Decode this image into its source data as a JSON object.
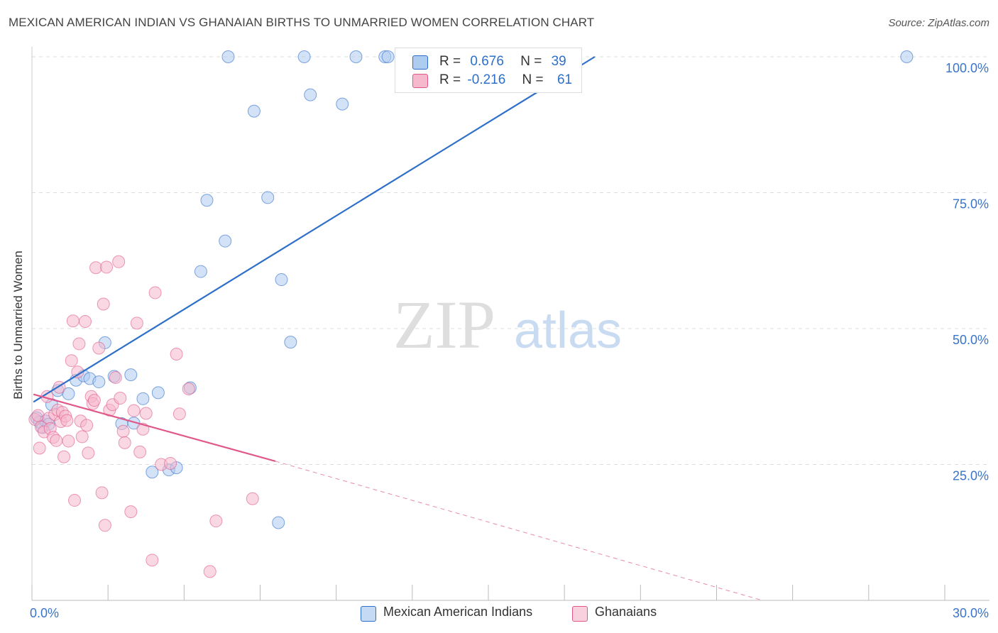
{
  "header": {
    "title": "MEXICAN AMERICAN INDIAN VS GHANAIAN BIRTHS TO UNMARRIED WOMEN CORRELATION CHART",
    "source": "Source: ZipAtlas.com"
  },
  "watermark": {
    "zip": "ZIP",
    "atlas": "atlas"
  },
  "colors": {
    "blue": "#2e6fc9",
    "blue_fill": "#aecbf0",
    "pink": "#e0588a",
    "pink_fill": "#f6b8cc",
    "grid": "#dddddd",
    "tick_label": "#3a74c8"
  },
  "legend_top": {
    "rows": [
      {
        "r_label": "R =",
        "r_value": "0.676",
        "n_label": "N =",
        "n_value": "39"
      },
      {
        "r_label": "R =",
        "r_value": "-0.216",
        "n_label": "N =",
        "n_value": "61"
      }
    ]
  },
  "legend_bottom": {
    "items": [
      {
        "label": "Mexican American Indians"
      },
      {
        "label": "Ghanaians"
      }
    ]
  },
  "chart_data": {
    "type": "scatter",
    "title": "MEXICAN AMERICAN INDIAN VS GHANAIAN BIRTHS TO UNMARRIED WOMEN CORRELATION CHART",
    "xlabel": "",
    "ylabel": "Births to Unmarried Women",
    "xlim": [
      0,
      30
    ],
    "ylim": [
      0,
      100
    ],
    "x_tick_labels": [
      "0.0%",
      "30.0%"
    ],
    "y_ticks": [
      25,
      50,
      75,
      100
    ],
    "y_tick_labels": [
      "25.0%",
      "50.0%",
      "75.0%",
      "100.0%"
    ],
    "grid": true,
    "legend_position": "top-center",
    "series": [
      {
        "name": "Mexican American Indians",
        "R": 0.676,
        "N": 39,
        "trend": {
          "x": [
            0.05,
            18.5
          ],
          "y": [
            36.5,
            100
          ]
        },
        "points": [
          [
            0.15,
            33.6
          ],
          [
            0.25,
            32.8
          ],
          [
            0.35,
            31.8
          ],
          [
            0.45,
            33.0
          ],
          [
            0.55,
            32.4
          ],
          [
            0.65,
            36.0
          ],
          [
            0.85,
            38.6
          ],
          [
            1.2,
            38.0
          ],
          [
            1.45,
            40.5
          ],
          [
            1.7,
            41.3
          ],
          [
            1.9,
            40.8
          ],
          [
            2.2,
            40.2
          ],
          [
            2.4,
            47.4
          ],
          [
            2.7,
            41.2
          ],
          [
            2.95,
            32.5
          ],
          [
            3.25,
            41.5
          ],
          [
            3.35,
            32.6
          ],
          [
            3.65,
            37.1
          ],
          [
            3.95,
            23.6
          ],
          [
            4.15,
            38.2
          ],
          [
            4.5,
            24.0
          ],
          [
            4.75,
            24.4
          ],
          [
            5.2,
            39.1
          ],
          [
            5.55,
            60.5
          ],
          [
            5.75,
            73.6
          ],
          [
            6.35,
            66.1
          ],
          [
            7.3,
            90.0
          ],
          [
            7.75,
            74.1
          ],
          [
            8.1,
            14.3
          ],
          [
            8.2,
            59.0
          ],
          [
            8.5,
            47.5
          ],
          [
            8.95,
            100
          ],
          [
            9.15,
            93.0
          ],
          [
            6.45,
            100
          ],
          [
            10.2,
            91.3
          ],
          [
            10.65,
            100
          ],
          [
            11.6,
            100
          ],
          [
            11.7,
            100
          ],
          [
            28.75,
            100
          ]
        ]
      },
      {
        "name": "Ghanaians",
        "R": -0.216,
        "N": 61,
        "trend": {
          "x": [
            0.05,
            8.0
          ],
          "y": [
            37.9,
            25.6
          ]
        },
        "trend_dashed": {
          "x": [
            8.0,
            24.0
          ],
          "y": [
            25.6,
            0.0
          ]
        },
        "points": [
          [
            0.1,
            33.3
          ],
          [
            0.2,
            34.0
          ],
          [
            0.25,
            28.0
          ],
          [
            0.3,
            31.9
          ],
          [
            0.4,
            31.0
          ],
          [
            0.5,
            37.5
          ],
          [
            0.55,
            33.5
          ],
          [
            0.6,
            31.6
          ],
          [
            0.7,
            30.0
          ],
          [
            0.75,
            34.2
          ],
          [
            0.8,
            29.4
          ],
          [
            0.85,
            35.0
          ],
          [
            0.9,
            39.2
          ],
          [
            0.95,
            32.9
          ],
          [
            1.0,
            34.6
          ],
          [
            1.05,
            26.4
          ],
          [
            1.1,
            33.9
          ],
          [
            1.15,
            33.1
          ],
          [
            1.2,
            29.3
          ],
          [
            1.3,
            44.1
          ],
          [
            1.35,
            51.4
          ],
          [
            1.4,
            18.4
          ],
          [
            1.5,
            42.0
          ],
          [
            1.55,
            47.2
          ],
          [
            1.6,
            33.0
          ],
          [
            1.65,
            30.1
          ],
          [
            1.75,
            51.3
          ],
          [
            1.8,
            32.2
          ],
          [
            1.85,
            27.1
          ],
          [
            1.95,
            37.5
          ],
          [
            2.0,
            36.2
          ],
          [
            2.05,
            36.8
          ],
          [
            2.1,
            61.2
          ],
          [
            2.2,
            46.4
          ],
          [
            2.3,
            19.8
          ],
          [
            2.35,
            54.5
          ],
          [
            2.4,
            13.8
          ],
          [
            2.45,
            61.3
          ],
          [
            2.55,
            35.0
          ],
          [
            2.65,
            36.0
          ],
          [
            2.75,
            41.0
          ],
          [
            2.85,
            62.3
          ],
          [
            2.9,
            37.2
          ],
          [
            3.0,
            31.1
          ],
          [
            3.05,
            29.0
          ],
          [
            3.25,
            16.3
          ],
          [
            3.35,
            34.9
          ],
          [
            3.45,
            51.0
          ],
          [
            3.55,
            27.3
          ],
          [
            3.65,
            31.5
          ],
          [
            3.75,
            34.4
          ],
          [
            3.95,
            7.4
          ],
          [
            4.05,
            56.6
          ],
          [
            4.25,
            25.0
          ],
          [
            4.55,
            25.2
          ],
          [
            4.75,
            45.3
          ],
          [
            4.85,
            34.3
          ],
          [
            5.15,
            38.9
          ],
          [
            5.85,
            5.3
          ],
          [
            6.05,
            14.6
          ],
          [
            7.25,
            18.7
          ]
        ]
      }
    ]
  }
}
